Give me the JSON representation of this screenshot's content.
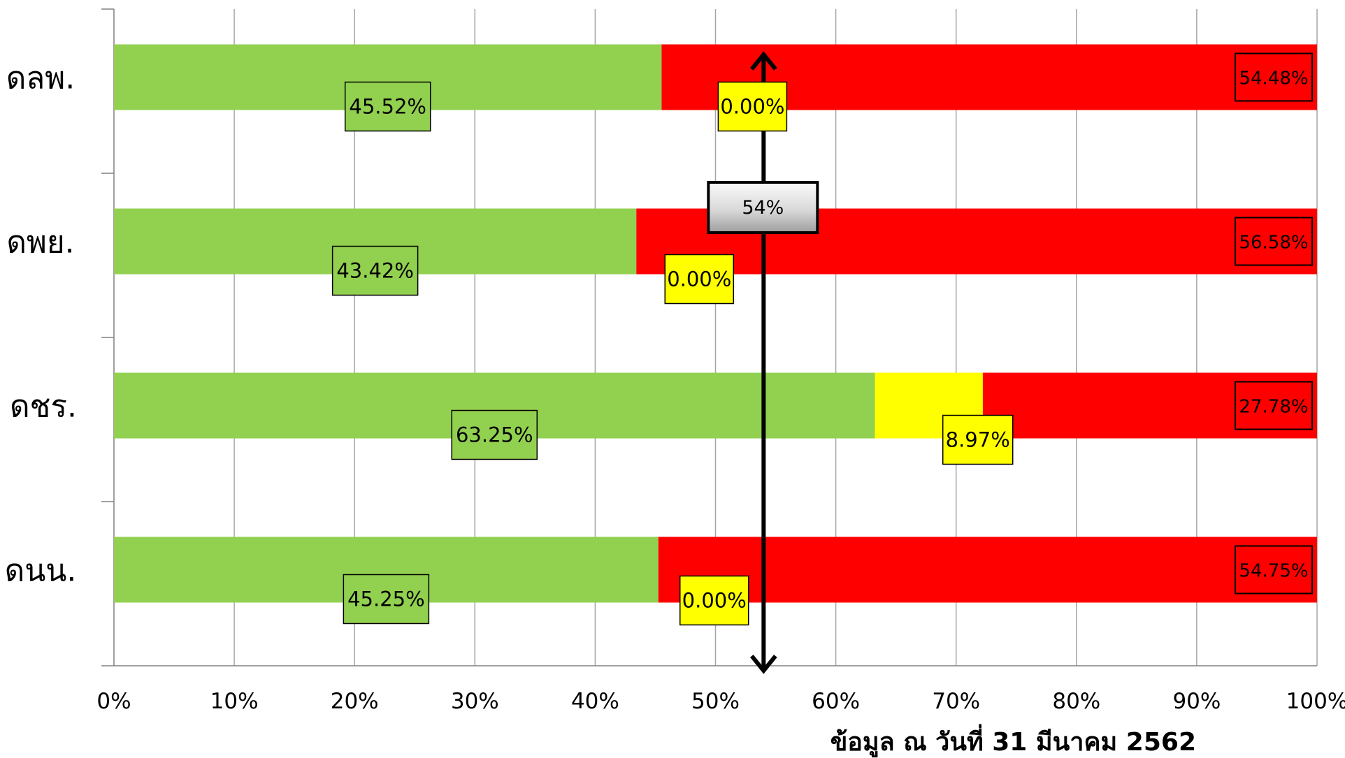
{
  "chart_data": {
    "type": "bar",
    "orientation": "horizontal",
    "stacked": true,
    "categories": [
      "ดลพ.",
      "ดพย.",
      "ดชร.",
      "ดนน."
    ],
    "series": [
      {
        "color": "#92d050",
        "values": [
          45.52,
          43.42,
          63.25,
          45.25
        ]
      },
      {
        "color": "#ffff00",
        "values": [
          0.0,
          0.0,
          8.97,
          0.0
        ]
      },
      {
        "color": "#ff0000",
        "values": [
          54.48,
          56.58,
          27.78,
          54.75
        ]
      }
    ],
    "data_labels": [
      [
        "45.52%",
        "43.42%",
        "63.25%",
        "45.25%"
      ],
      [
        "0.00%",
        "0.00%",
        "8.97%",
        "0.00%"
      ],
      [
        "54.48%",
        "56.58%",
        "27.78%",
        "54.75%"
      ]
    ],
    "xlim": [
      0,
      100
    ],
    "x_ticks": [
      0,
      10,
      20,
      30,
      40,
      50,
      60,
      70,
      80,
      90,
      100
    ],
    "x_tick_labels": [
      "0%",
      "10%",
      "20%",
      "30%",
      "40%",
      "50%",
      "60%",
      "70%",
      "80%",
      "90%",
      "100%"
    ],
    "vertical_grid": true,
    "reference_line": {
      "value": 54,
      "label": "54%"
    },
    "footnote": "ข้อมูล ณ วันที่ 31 มีนาคม 2562"
  }
}
